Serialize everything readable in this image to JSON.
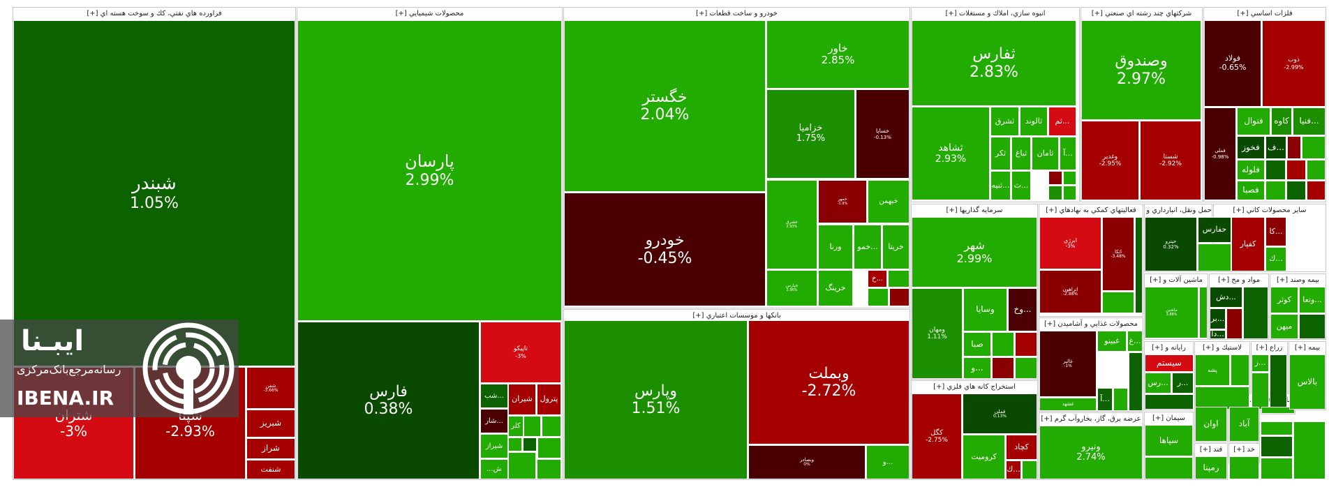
{
  "colors": {
    "up_strong": "#22ab00",
    "up_mid": "#1c8f00",
    "up_dark": "#0d6200",
    "up_deep": "#0a4a00",
    "down_deep": "#4a0000",
    "down_dark": "#8a0000",
    "down_mid": "#a50000",
    "down_strong": "#d40b12"
  },
  "chart_data": {
    "type": "treemap",
    "sectors": [
      {
        "name": "فراورده هاي نفتي، كك و سوخت هسته اي [+]",
        "stocks": [
          {
            "symbol": "شبندر",
            "change": "1.05%"
          },
          {
            "symbol": "شتران",
            "change": "-3%"
          },
          {
            "symbol": "شپنا",
            "change": "-2.93%"
          },
          {
            "symbol": "شبريز",
            "change": ""
          },
          {
            "symbol": "شراز",
            "change": ""
          },
          {
            "symbol": "شنفت",
            "change": ""
          },
          {
            "symbol": "شفن",
            "change": "-3.66%"
          }
        ]
      },
      {
        "name": "محصولات شيميايي [+]",
        "stocks": [
          {
            "symbol": "پارسان",
            "change": "2.99%"
          },
          {
            "symbol": "فارس",
            "change": "0.38%"
          },
          {
            "symbol": "تاپيكو",
            "change": "-3%"
          },
          {
            "symbol": "شيران",
            "change": ""
          },
          {
            "symbol": "پترول",
            "change": ""
          },
          {
            "symbol": "شب...",
            "change": ""
          },
          {
            "symbol": "شار...",
            "change": ""
          },
          {
            "symbol": "كلر",
            "change": ""
          },
          {
            "symbol": "شيراز",
            "change": ""
          },
          {
            "symbol": "...ش",
            "change": ""
          }
        ]
      },
      {
        "name": "خودرو و ساخت قطعات [+]",
        "stocks": [
          {
            "symbol": "خگستر",
            "change": "2.04%"
          },
          {
            "symbol": "خاور",
            "change": "2.85%"
          },
          {
            "symbol": "خودرو",
            "change": "-0.45%"
          },
          {
            "symbol": "خزاميا",
            "change": "1.75%"
          },
          {
            "symbol": "خساپا",
            "change": "-0.13%"
          },
          {
            "symbol": "خمهر",
            "change": "-1.9%"
          },
          {
            "symbol": "خبهمن",
            "change": ""
          },
          {
            "symbol": "خشرق",
            "change": "2.93%"
          },
          {
            "symbol": "ورنا",
            "change": ""
          },
          {
            "symbol": "خمو...",
            "change": ""
          },
          {
            "symbol": "خريتا",
            "change": ""
          },
          {
            "symbol": "خپارس",
            "change": "2.96%"
          },
          {
            "symbol": "خرينگ",
            "change": ""
          },
          {
            "symbol": "خ...",
            "change": ""
          }
        ]
      },
      {
        "name": "بانكها و موسسات اعتباري [+]",
        "stocks": [
          {
            "symbol": "وپارس",
            "change": "1.51%"
          },
          {
            "symbol": "وبملت",
            "change": "-2.72%"
          },
          {
            "symbol": "وبصادر",
            "change": "0%"
          },
          {
            "symbol": "و...",
            "change": ""
          }
        ]
      },
      {
        "name": "انبوه سازي، املاك و مستغلات [+]",
        "stocks": [
          {
            "symbol": "ثفارس",
            "change": "2.83%"
          },
          {
            "symbol": "ثشاهد",
            "change": "2.93%"
          },
          {
            "symbol": "ثشرق",
            "change": ""
          },
          {
            "symbol": "ثالوند",
            "change": ""
          },
          {
            "symbol": "ثم...",
            "change": ""
          },
          {
            "symbol": "ثامان",
            "change": ""
          },
          {
            "symbol": "ثباغ",
            "change": ""
          },
          {
            "symbol": "ثكر",
            "change": ""
          },
          {
            "symbol": "ثنيه...",
            "change": ""
          },
          {
            "symbol": "ث...",
            "change": ""
          },
          {
            "symbol": "آ...",
            "change": ""
          }
        ]
      },
      {
        "name": "شركتهاي چند رشته اي صنعتي [+]",
        "stocks": [
          {
            "symbol": "وصندوق",
            "change": "2.97%"
          },
          {
            "symbol": "وغدير",
            "change": "-2.95%"
          },
          {
            "symbol": "شستا",
            "change": "-2.92%"
          }
        ]
      },
      {
        "name": "فلزات اساسي [+]",
        "stocks": [
          {
            "symbol": "فولاد",
            "change": "-0.65%"
          },
          {
            "symbol": "ذوب",
            "change": "-2.99%"
          },
          {
            "symbol": "فملي",
            "change": "-0.98%"
          },
          {
            "symbol": "فنوال",
            "change": ""
          },
          {
            "symbol": "كاوه",
            "change": ""
          },
          {
            "symbol": "فخوز",
            "change": ""
          },
          {
            "symbol": "فلوله",
            "change": ""
          },
          {
            "symbol": "فصبا",
            "change": ""
          },
          {
            "symbol": "فنيا...",
            "change": ""
          },
          {
            "symbol": "ف...",
            "change": ""
          }
        ]
      },
      {
        "name": "سرمايه گذاريها [+]",
        "stocks": [
          {
            "symbol": "شهر",
            "change": "2.99%"
          },
          {
            "symbol": "وسايا",
            "change": ""
          },
          {
            "symbol": "ومهان",
            "change": "1.11%"
          },
          {
            "symbol": "وخ...",
            "change": ""
          },
          {
            "symbol": "صبا",
            "change": ""
          },
          {
            "symbol": "و...",
            "change": ""
          }
        ]
      },
      {
        "name": "فعاليتهاي كمكي به نهادهاي [+]",
        "stocks": [
          {
            "symbol": "ابرژي",
            "change": "-3%"
          },
          {
            "symbol": "اتكا",
            "change": "-3.48%"
          },
          {
            "symbol": "اتراهون",
            "change": "-2.88%"
          }
        ]
      },
      {
        "name": "حمل ونقل، انبارداري و ا [+]",
        "stocks": [
          {
            "symbol": "حپترو",
            "change": "0.32%"
          },
          {
            "symbol": "حفارس",
            "change": ""
          }
        ]
      },
      {
        "name": "ساير محصولات كاني [+]",
        "stocks": [
          {
            "symbol": "كفپار",
            "change": ""
          },
          {
            "symbol": "كا...",
            "change": ""
          },
          {
            "symbol": "ك...",
            "change": ""
          }
        ]
      },
      {
        "name": "ماشين آلات و [+]",
        "stocks": [
          {
            "symbol": "ماشين",
            "change": "3.88%"
          }
        ]
      },
      {
        "name": "مواد و مح [+]",
        "stocks": [
          {
            "symbol": "دش...",
            "change": ""
          },
          {
            "symbol": "بر...",
            "change": ""
          },
          {
            "symbol": "دا...",
            "change": ""
          }
        ]
      },
      {
        "name": "بيمه وصند [+]",
        "stocks": [
          {
            "symbol": "كوثر",
            "change": ""
          },
          {
            "symbol": "وتعا...",
            "change": ""
          },
          {
            "symbol": "ميهن",
            "change": ""
          }
        ]
      },
      {
        "name": "محصولات غذايي و آشاميدن [+]",
        "stocks": [
          {
            "symbol": "غالبر",
            "change": "-1%"
          },
          {
            "symbol": "غبينو",
            "change": ""
          },
          {
            "symbol": "غ...",
            "change": ""
          },
          {
            "symbol": "غشهد",
            "change": ""
          },
          {
            "symbol": "آ...",
            "change": ""
          }
        ]
      },
      {
        "name": "استخراج كانه هاي فلزي [+]",
        "stocks": [
          {
            "symbol": "كگل",
            "change": "-2.75%"
          },
          {
            "symbol": "فملي",
            "change": "0.13%"
          },
          {
            "symbol": "كرومیت",
            "change": ""
          },
          {
            "symbol": "كچاد",
            "change": ""
          },
          {
            "symbol": "ك...",
            "change": ""
          }
        ]
      },
      {
        "name": "عرضه برق، گاز، بخاروآب گرم [+]",
        "stocks": [
          {
            "symbol": "ونيرو",
            "change": "2.74%"
          }
        ]
      },
      {
        "name": "رايانه و [+]",
        "stocks": [
          {
            "symbol": "سيستم",
            "change": ""
          },
          {
            "symbol": "رس...",
            "change": ""
          },
          {
            "symbol": "ر...",
            "change": ""
          }
        ]
      },
      {
        "name": "لاستيك و [+]",
        "stocks": [
          {
            "symbol": "پشه",
            "change": ""
          }
        ]
      },
      {
        "name": "زراع [+]",
        "stocks": [
          {
            "symbol": "ز...",
            "change": ""
          }
        ]
      },
      {
        "name": "بيمه [+]",
        "stocks": [
          {
            "symbol": "بالاس",
            "change": ""
          }
        ]
      },
      {
        "name": "سيمان [+]",
        "stocks": [
          {
            "symbol": "سپاها",
            "change": ""
          }
        ]
      },
      {
        "name": "اطلا [+]",
        "stocks": [
          {
            "symbol": "اوان",
            "change": ""
          }
        ]
      },
      {
        "name": "...ه [+]",
        "stocks": [
          {
            "symbol": "آباد",
            "change": ""
          }
        ]
      },
      {
        "name": "ماش [+]",
        "stocks": []
      },
      {
        "name": "قند [+]",
        "stocks": [
          {
            "symbol": "رمپنا",
            "change": ""
          }
        ]
      },
      {
        "name": "خد [+]",
        "stocks": []
      }
    ]
  },
  "logo": {
    "brand": "ایبـنا",
    "tagline": "رسانه‌مرجع‌بانک‌مرکزی",
    "site": "IBENA.IR"
  }
}
